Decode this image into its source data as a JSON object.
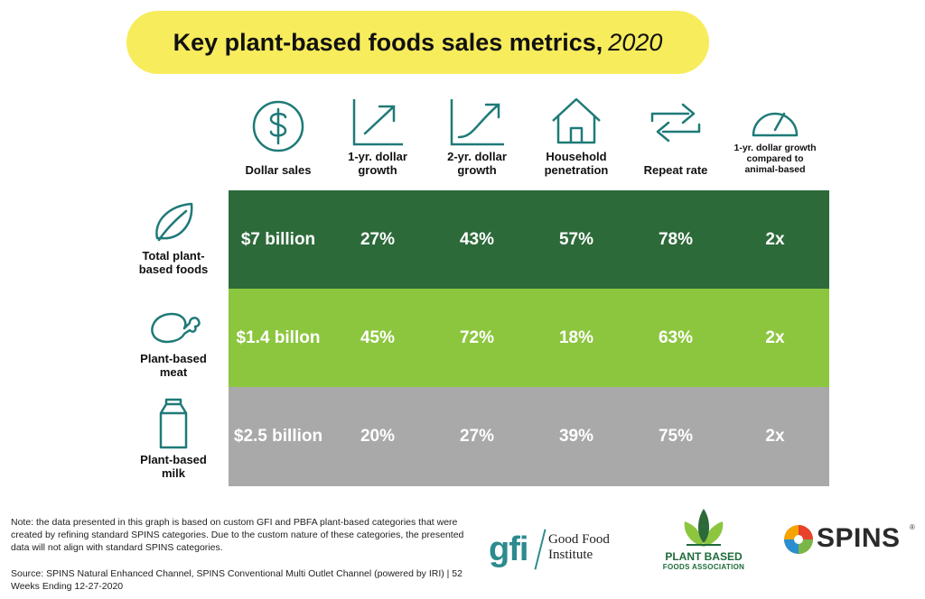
{
  "title": {
    "main": "Key plant-based foods sales metrics,",
    "year": "2020"
  },
  "columns": [
    {
      "label": "Dollar sales",
      "icon": "dollar-icon"
    },
    {
      "label": "1-yr. dollar growth",
      "icon": "growth-arrow-icon"
    },
    {
      "label": "2-yr. dollar growth",
      "icon": "growth-curve-icon"
    },
    {
      "label": "Household penetration",
      "icon": "house-icon"
    },
    {
      "label": "Repeat rate",
      "icon": "repeat-arrows-icon"
    },
    {
      "label": "1-yr. dollar growth compared to animal-based",
      "icon": "gauge-icon"
    }
  ],
  "rows": [
    {
      "label": "Total plant-based foods",
      "icon": "leaf-icon",
      "color": "#2d6a3a",
      "cells": [
        "$7 billion",
        "27%",
        "43%",
        "57%",
        "78%",
        "2x"
      ]
    },
    {
      "label": "Plant-based meat",
      "icon": "drumstick-icon",
      "color": "#8cc63f",
      "cells": [
        "$1.4 billon",
        "45%",
        "72%",
        "18%",
        "63%",
        "2x"
      ]
    },
    {
      "label": "Plant-based milk",
      "icon": "milk-carton-icon",
      "color": "#a9a9a9",
      "cells": [
        "$2.5 billion",
        "20%",
        "27%",
        "39%",
        "75%",
        "2x"
      ]
    }
  ],
  "chart_data": {
    "type": "table",
    "title": "Key plant-based foods sales metrics, 2020",
    "columns": [
      "Dollar sales",
      "1-yr. dollar growth",
      "2-yr. dollar growth",
      "Household penetration",
      "Repeat rate",
      "1-yr. dollar growth compared to animal-based"
    ],
    "rows": [
      {
        "name": "Total plant-based foods",
        "values": [
          "$7 billion",
          "27%",
          "43%",
          "57%",
          "78%",
          "2x"
        ]
      },
      {
        "name": "Plant-based meat",
        "values": [
          "$1.4 billon",
          "45%",
          "72%",
          "18%",
          "63%",
          "2x"
        ]
      },
      {
        "name": "Plant-based milk",
        "values": [
          "$2.5 billion",
          "20%",
          "27%",
          "39%",
          "75%",
          "2x"
        ]
      }
    ]
  },
  "note": "Note: the data presented in this graph is based on custom GFI and PBFA plant-based categories that were created by refining standard SPINS categories. Due to the custom nature of these categories, the presented data will not align with standard SPINS categories.",
  "source": "Source: SPINS Natural Enhanced Channel, SPINS Conventional Multi Outlet Channel (powered by IRI) | 52 Weeks Ending 12-27-2020",
  "logos": {
    "gfi": {
      "mark": "gfi",
      "name_line1": "Good Food",
      "name_line2": "Institute"
    },
    "pbfa": {
      "line1": "PLANT BASED",
      "line2": "FOODS ASSOCIATION"
    },
    "spins": {
      "word": "SPINS",
      "reg": "®"
    }
  },
  "colors": {
    "title_bg": "#f7ec5c",
    "icon_stroke": "#1f7a78",
    "dark_green": "#2d6a3a",
    "light_green": "#8cc63f",
    "gray": "#a9a9a9"
  }
}
